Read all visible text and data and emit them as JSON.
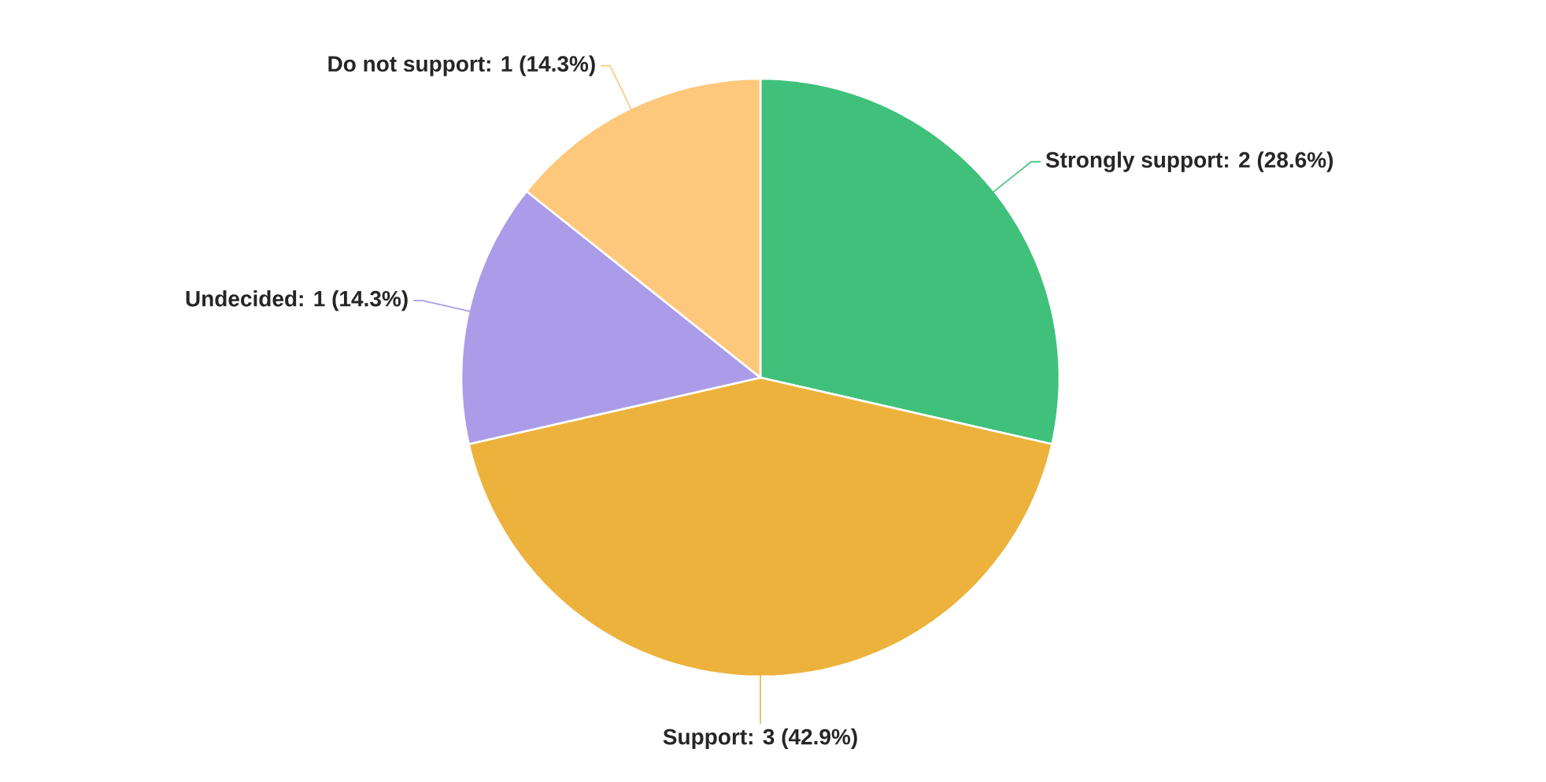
{
  "chart_data": {
    "type": "pie",
    "categories": [
      "Strongly support",
      "Support",
      "Undecided",
      "Do not support"
    ],
    "values": [
      2,
      3,
      1,
      1
    ],
    "value_labels": [
      ": 2 (28.6%)",
      ": 3 (42.9%)",
      ": 1 (14.3%)",
      ": 1 (14.3%)"
    ],
    "colors": [
      "#3fc17b",
      "#ecb23c",
      "#aa9ce8",
      "#fdc87c"
    ]
  }
}
